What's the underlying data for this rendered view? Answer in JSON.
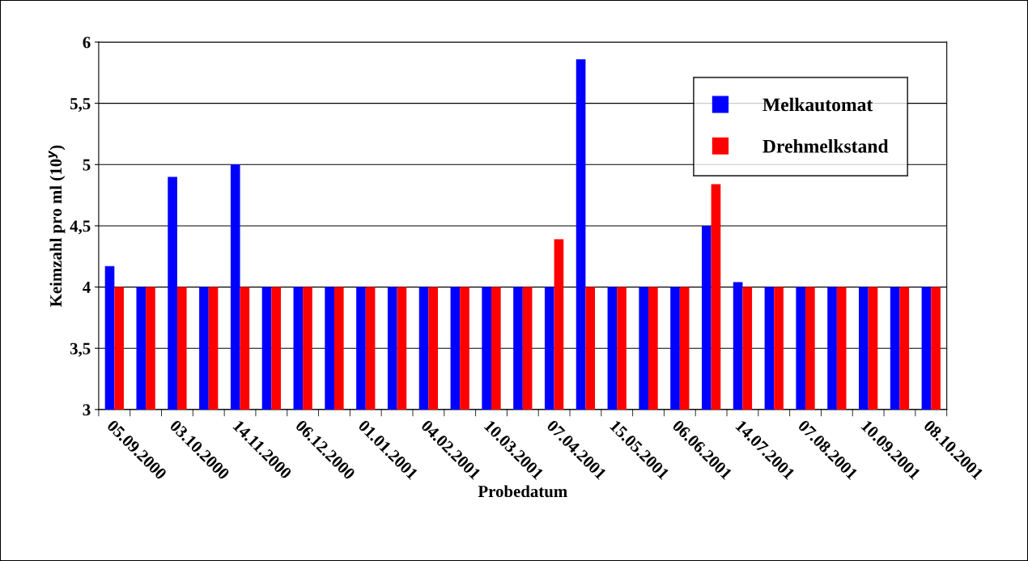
{
  "chart_data": {
    "type": "bar",
    "xlabel": "Probedatum",
    "ylabel": "Keimzahl pro ml (10$^{y}$)",
    "categories": [
      "05.09.2000",
      null,
      "03.10.2000",
      null,
      "14.11.2000",
      null,
      "06.12.2000",
      null,
      "01.01.2001",
      null,
      "04.02.2001",
      null,
      "10.03.2001",
      null,
      "07.04.2001",
      null,
      "15.05.2001",
      null,
      "06.06.2001",
      null,
      "14.07.2001",
      null,
      "07.08.2001",
      null,
      "10.09.2001",
      null,
      "08.10.2001"
    ],
    "series": [
      {
        "name": "Melkautomat",
        "color": "#0000ff",
        "values": [
          4.17,
          4,
          4.9,
          4,
          5.0,
          4,
          4,
          4,
          4,
          4,
          4,
          4,
          4,
          4,
          4,
          5.86,
          4,
          4,
          4,
          4.5,
          4.04,
          4,
          4,
          4,
          4,
          4,
          4
        ]
      },
      {
        "name": "Drehmelkstand",
        "color": "#ff0000",
        "values": [
          4,
          4,
          4,
          4,
          4,
          4,
          4,
          4,
          4,
          4,
          4,
          4,
          4,
          4,
          4.39,
          4,
          4,
          4,
          4,
          4.84,
          4,
          4,
          4,
          4,
          4,
          4,
          4
        ]
      }
    ],
    "ylim": [
      3,
      6
    ],
    "yticks": [
      3,
      {
        "value": 3.5,
        "label": "3,5"
      },
      4,
      {
        "value": 4.5,
        "label": "4,5"
      },
      5,
      {
        "value": 5.5,
        "label": "5,5"
      },
      6
    ],
    "grid": "y",
    "legend": "top right"
  }
}
